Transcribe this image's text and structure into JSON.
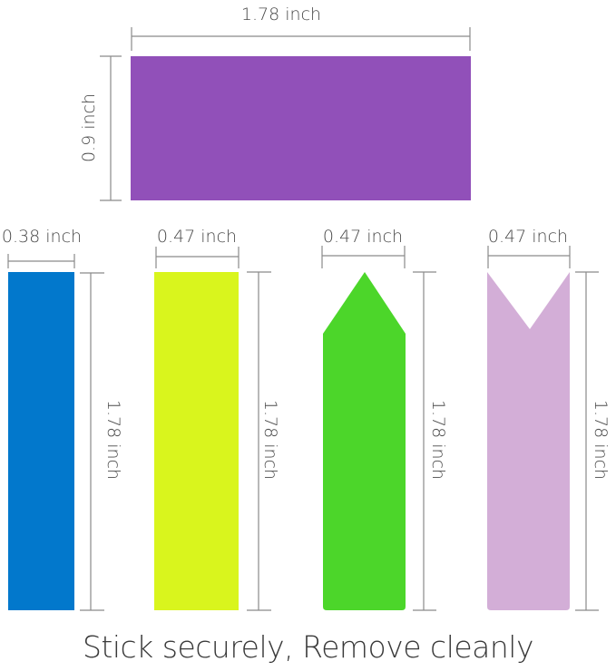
{
  "tabs": {
    "purple": {
      "color": "#9150b9",
      "width_label": "1.78 inch",
      "height_label": "0.9 inch",
      "shape": "rectangle"
    },
    "blue": {
      "color": "#0278cc",
      "width_label": "0.38 inch",
      "height_label": "1.78 inch",
      "shape": "rectangle"
    },
    "yellow": {
      "color": "#d9f51d",
      "width_label": "0.47 inch",
      "height_label": "1.78 inch",
      "shape": "rectangle"
    },
    "green": {
      "color": "#4cd62a",
      "width_label": "0.47 inch",
      "height_label": "1.78 inch",
      "shape": "arrow-point"
    },
    "pink": {
      "color": "#d3aed7",
      "width_label": "0.47 inch",
      "height_label": "1.78 inch",
      "shape": "notched"
    }
  },
  "caption": "Stick securely, Remove cleanly"
}
